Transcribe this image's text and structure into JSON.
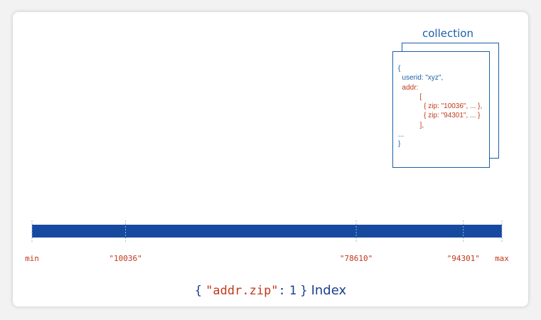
{
  "collection": {
    "title": "collection",
    "document_lines": [
      {
        "text": "{",
        "color": "blue"
      },
      {
        "text": "  userid: \"xyz\",",
        "color": "blue"
      },
      {
        "text": "  addr:",
        "color": "red"
      },
      {
        "text": "           [",
        "color": "red"
      },
      {
        "text": "             { zip: \"10036\", ... },",
        "color": "red"
      },
      {
        "text": "             { zip: \"94301\", ... }",
        "color": "red"
      },
      {
        "text": "           ],",
        "color": "red"
      },
      {
        "text": "...",
        "color": "blue"
      },
      {
        "text": "}",
        "color": "blue"
      }
    ]
  },
  "index_axis": {
    "bar_color": "#1649a0",
    "tick_color": "#c0391b",
    "labels": [
      {
        "text": "min",
        "fraction": 0.0
      },
      {
        "text": "\"10036\"",
        "fraction": 0.199
      },
      {
        "text": "\"78610\"",
        "fraction": 0.69
      },
      {
        "text": "\"94301\"",
        "fraction": 0.918
      },
      {
        "text": "max",
        "fraction": 1.0
      }
    ]
  },
  "index_caption": {
    "open_brace": "{",
    "key": "\"addr.zip\"",
    "colon": ":",
    "value": "1",
    "close_brace": "}",
    "word": "Index"
  },
  "colors": {
    "blue": "#1c5fa8",
    "red": "#c0391b",
    "dark_blue": "#1c3f8c"
  }
}
